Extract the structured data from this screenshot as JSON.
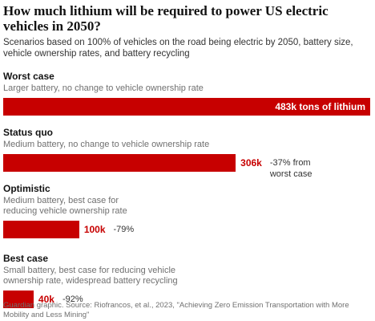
{
  "chart_data": {
    "type": "bar",
    "title": "How much lithium will be required to power US electric vehicles in 2050?",
    "subtitle": "Scenarios based on 100% of vehicles on the road being electric by 2050, battery size, vehicle ownership rates, and battery recycling",
    "categories": [
      "Worst case",
      "Status quo",
      "Optimistic",
      "Best case"
    ],
    "descriptions": [
      "Larger battery, no change to vehicle ownership rate",
      "Medium battery, no change to vehicle ownership rate",
      "Medium battery, best case for reducing vehicle ownership rate",
      "Small battery, best case for reducing vehicle ownership rate, widespread battery recycling"
    ],
    "values": [
      483,
      306,
      100,
      40
    ],
    "value_labels": [
      "483k tons of lithium",
      "306k",
      "100k",
      "40k"
    ],
    "annotations": [
      null,
      "-37% from worst case",
      "-79%",
      "-92%"
    ],
    "color": "#c70000",
    "source": "Guardian graphic. Source: Riofrancos, et al., 2023, \"Achieving Zero Emission Transportation with More Mobility and Less Mining\""
  }
}
